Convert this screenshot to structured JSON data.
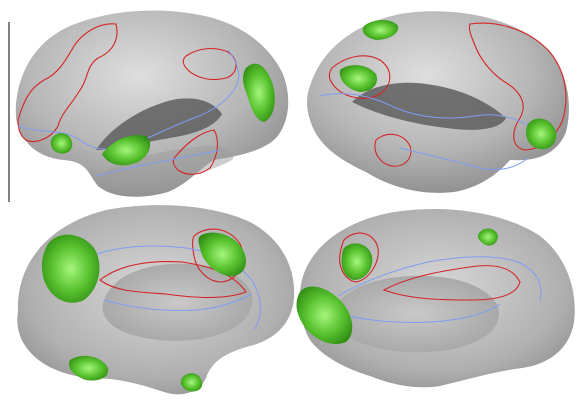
{
  "figure": {
    "views": [
      {
        "name": "left-lateral-view"
      },
      {
        "name": "right-lateral-view"
      },
      {
        "name": "left-medial-view"
      },
      {
        "name": "right-medial-view"
      }
    ],
    "colors": {
      "background": "#ffffff",
      "cortex_light": "#d9d9d9",
      "cortex_mid": "#a8a8a8",
      "cortex_dark": "#5e5e5e",
      "activation": "#3e9a1c",
      "activation_bright": "#8ff06a",
      "outline_red": "#d42424",
      "outline_blue": "#7f9cf5",
      "divider": "#000000"
    }
  }
}
